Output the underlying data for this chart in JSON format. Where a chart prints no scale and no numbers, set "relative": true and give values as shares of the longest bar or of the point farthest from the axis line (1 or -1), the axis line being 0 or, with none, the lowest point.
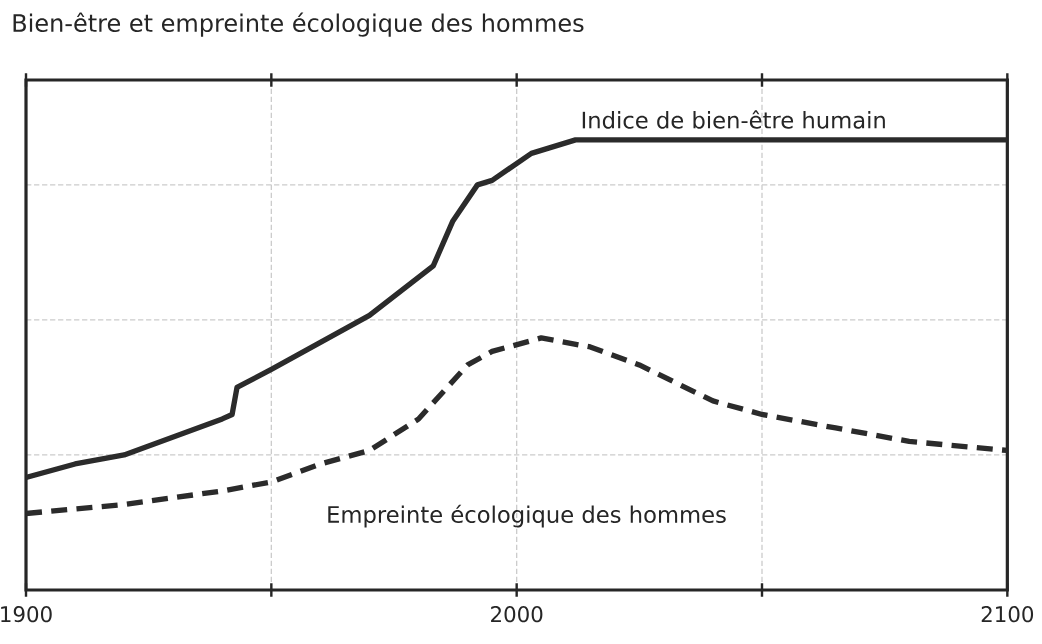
{
  "chart_data": {
    "type": "line",
    "title": "Bien-être et empreinte écologique des hommes",
    "relative": true,
    "grid": true,
    "tick_labels": "x",
    "xlim": [
      1900,
      2100
    ],
    "xticks": [
      1900,
      {
        "value": 1950,
        "label": null
      },
      2000,
      {
        "value": 2050,
        "label": null
      },
      2100
    ],
    "series": [
      {
        "name": "Indice de bien-être humain",
        "color": "#2b2b2b",
        "line_style": "solid",
        "x": [
          1900,
          1910,
          1920,
          1930,
          1940,
          1942,
          1943,
          1950,
          1960,
          1970,
          1983,
          1987,
          1992,
          1995,
          2003,
          2012,
          2100
        ],
        "values": [
          0.25,
          0.28,
          0.3,
          0.34,
          0.38,
          0.39,
          0.45,
          0.49,
          0.55,
          0.61,
          0.72,
          0.82,
          0.9,
          0.91,
          0.97,
          1.0,
          1.0
        ]
      },
      {
        "name": "Empreinte écologique des hommes",
        "color": "#2b2b2b",
        "line_style": "dashed",
        "x": [
          1900,
          1920,
          1940,
          1950,
          1960,
          1970,
          1980,
          1985,
          1990,
          1995,
          2005,
          2015,
          2025,
          2040,
          2050,
          2065,
          2080,
          2100
        ],
        "values": [
          0.17,
          0.19,
          0.22,
          0.24,
          0.28,
          0.31,
          0.38,
          0.44,
          0.5,
          0.53,
          0.56,
          0.54,
          0.5,
          0.42,
          0.39,
          0.36,
          0.33,
          0.31
        ]
      }
    ]
  }
}
